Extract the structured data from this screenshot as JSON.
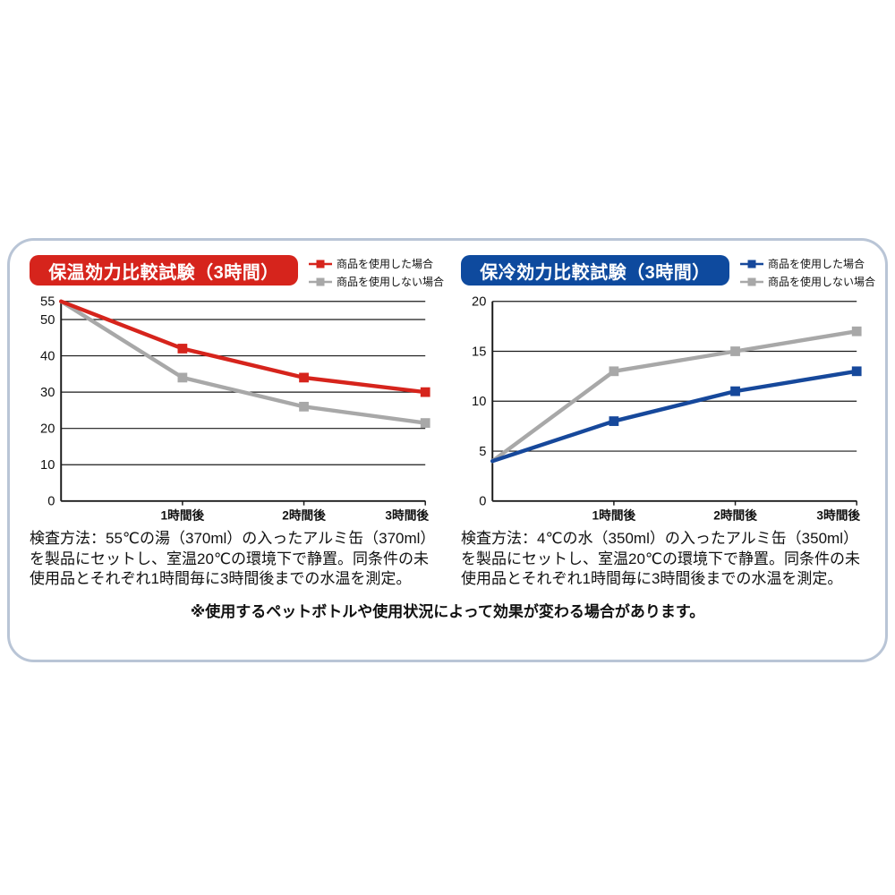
{
  "panel": {
    "border_color": "#b9c5d6",
    "background": "#ffffff"
  },
  "note": "※使用するペットボトルや使用状況によって効果が変わる場合があります。",
  "chart_data": [
    {
      "type": "line",
      "title": "保温効力比較試験（3時間）",
      "title_bg": "#d6241c",
      "x": [
        0,
        1,
        2,
        3
      ],
      "x_labels": [
        "1時間後",
        "2時間後",
        "3時間後"
      ],
      "ylim": [
        0,
        55
      ],
      "yticks": [
        0,
        10,
        20,
        30,
        40,
        50,
        55
      ],
      "ylabel": "",
      "grid": true,
      "legend_position": "top-right",
      "series": [
        {
          "name": "商品を使用した場合",
          "color": "#d6241c",
          "values": [
            55,
            42,
            34,
            30
          ]
        },
        {
          "name": "商品を使用しない場合",
          "color": "#a8a8a8",
          "values": [
            55,
            34,
            26,
            21.5
          ]
        }
      ],
      "method": "検査方法：55℃の湯（370ml）の入ったアルミ缶（370ml）を製品にセットし、室温20℃の環境下で静置。同条件の未使用品とそれぞれ1時間毎に3時間後までの水温を測定。"
    },
    {
      "type": "line",
      "title": "保冷効力比較試験（3時間）",
      "title_bg": "#0e4a9e",
      "x": [
        0,
        1,
        2,
        3
      ],
      "x_labels": [
        "1時間後",
        "2時間後",
        "3時間後"
      ],
      "ylim": [
        0,
        20
      ],
      "yticks": [
        0,
        5,
        10,
        15,
        20
      ],
      "ylabel": "",
      "grid": true,
      "legend_position": "top-right",
      "series": [
        {
          "name": "商品を使用した場合",
          "color": "#16489b",
          "values": [
            4,
            8,
            11,
            13
          ]
        },
        {
          "name": "商品を使用しない場合",
          "color": "#a8a8a8",
          "values": [
            4,
            13,
            15,
            17
          ]
        }
      ],
      "method": "検査方法：4℃の水（350ml）の入ったアルミ缶（350ml）を製品にセットし、室温20℃の環境下で静置。同条件の未使用品とそれぞれ1時間毎に3時間後までの水温を測定。"
    }
  ]
}
